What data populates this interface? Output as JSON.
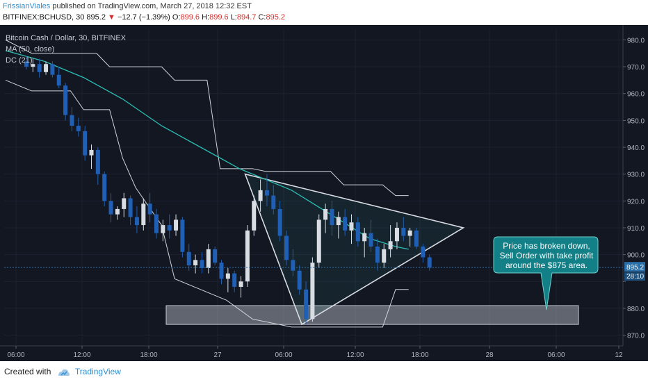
{
  "header": {
    "author": "FrissianViales",
    "published": "published on TradingView.com, March 27, 2018 12:32 EST",
    "symbol": "BITFINEX:BCHUSD, 30",
    "last": "895.2",
    "change": "−12.7 (−1.39%)",
    "open_label": "O:",
    "open": "899.6",
    "high_label": "H:",
    "high": "899.6",
    "low_label": "L:",
    "low": "894.7",
    "close_label": "C:",
    "close": "895.2"
  },
  "legend": {
    "title": "Bitcoin Cash / Dollar, 30, BITFINEX",
    "ma": "MA (50, close)",
    "dc": "DC (21)"
  },
  "annotation": {
    "line1": "Price has broken down,",
    "line2": "Sell Order with take profit",
    "line3": "around the $875 area."
  },
  "footer": {
    "created": "Created with",
    "brand": "TradingView"
  },
  "colors": {
    "background": "#131722",
    "up": "#d8dde3",
    "down": "#1f5fb5",
    "ma": "#2bbfb4",
    "channel": "#d0d4da",
    "callout": "#137f86",
    "price_tag": "#2a6fa8"
  },
  "chart_data": {
    "type": "candlestick",
    "ylim": [
      866,
      984
    ],
    "y_ticks": [
      870,
      880,
      890,
      900,
      910,
      920,
      930,
      940,
      950,
      960,
      970,
      980
    ],
    "y_tick_labels": [
      "870.0",
      "880.0",
      "",
      "900.0",
      "910.0",
      "920.0",
      "930.0",
      "940.0",
      "950.0",
      "960.0",
      "970.0",
      "980.0"
    ],
    "x_ticks": [
      "06:00",
      "12:00",
      "18:00",
      "27",
      "06:00",
      "12:00",
      "18:00",
      "28",
      "06:00",
      "12"
    ],
    "last_price_label": "895.2",
    "countdown_label": "28:10",
    "candles": [
      [
        972,
        974,
        969,
        970
      ],
      [
        970,
        973,
        968,
        971
      ],
      [
        971,
        973,
        966,
        968
      ],
      [
        968,
        972,
        967,
        971
      ],
      [
        971,
        972,
        966,
        967
      ],
      [
        967,
        970,
        962,
        963
      ],
      [
        963,
        964,
        950,
        952
      ],
      [
        952,
        955,
        946,
        948
      ],
      [
        948,
        951,
        944,
        946
      ],
      [
        946,
        948,
        935,
        937
      ],
      [
        937,
        941,
        932,
        939
      ],
      [
        939,
        940,
        926,
        930
      ],
      [
        930,
        931,
        918,
        920
      ],
      [
        920,
        923,
        912,
        915
      ],
      [
        915,
        918,
        913,
        917
      ],
      [
        917,
        923,
        914,
        921
      ],
      [
        921,
        922,
        911,
        914
      ],
      [
        914,
        918,
        908,
        911
      ],
      [
        911,
        921,
        909,
        919
      ],
      [
        919,
        923,
        912,
        915
      ],
      [
        915,
        917,
        906,
        908
      ],
      [
        908,
        913,
        905,
        911
      ],
      [
        911,
        915,
        906,
        909
      ],
      [
        909,
        915,
        907,
        913
      ],
      [
        913,
        914,
        899,
        901
      ],
      [
        901,
        904,
        894,
        896
      ],
      [
        896,
        900,
        893,
        898
      ],
      [
        898,
        901,
        893,
        895
      ],
      [
        895,
        904,
        893,
        902
      ],
      [
        902,
        903,
        896,
        897
      ],
      [
        897,
        898,
        889,
        891
      ],
      [
        891,
        895,
        886,
        893
      ],
      [
        893,
        894,
        886,
        888
      ],
      [
        888,
        892,
        884,
        890
      ],
      [
        890,
        911,
        888,
        909
      ],
      [
        909,
        922,
        907,
        920
      ],
      [
        920,
        928,
        916,
        924
      ],
      [
        924,
        930,
        918,
        922
      ],
      [
        922,
        926,
        915,
        917
      ],
      [
        917,
        920,
        905,
        907
      ],
      [
        907,
        909,
        896,
        898
      ],
      [
        898,
        902,
        892,
        894
      ],
      [
        894,
        896,
        885,
        887
      ],
      [
        887,
        890,
        874,
        876
      ],
      [
        876,
        899,
        875,
        897
      ],
      [
        897,
        915,
        895,
        913
      ],
      [
        913,
        919,
        908,
        917
      ],
      [
        917,
        920,
        907,
        911
      ],
      [
        911,
        916,
        906,
        914
      ],
      [
        914,
        917,
        907,
        909
      ],
      [
        909,
        915,
        904,
        912
      ],
      [
        912,
        914,
        903,
        905
      ],
      [
        905,
        910,
        899,
        908
      ],
      [
        908,
        913,
        901,
        903
      ],
      [
        903,
        906,
        894,
        897
      ],
      [
        897,
        904,
        895,
        902
      ],
      [
        902,
        911,
        899,
        905
      ],
      [
        905,
        912,
        902,
        910
      ],
      [
        910,
        914,
        905,
        907
      ],
      [
        907,
        910,
        903,
        909
      ],
      [
        909,
        910,
        902,
        903
      ],
      [
        903,
        904,
        897,
        899
      ],
      [
        899,
        900,
        894,
        895.2
      ]
    ],
    "ma_50": [
      [
        0,
        976
      ],
      [
        6,
        972
      ],
      [
        12,
        966
      ],
      [
        18,
        958
      ],
      [
        24,
        948
      ],
      [
        30,
        940
      ],
      [
        36,
        932
      ],
      [
        40,
        928
      ],
      [
        44,
        924
      ],
      [
        48,
        918
      ],
      [
        52,
        912
      ],
      [
        56,
        906
      ],
      [
        60,
        903
      ],
      [
        62,
        902
      ]
    ],
    "donchian_upper": [
      [
        0,
        980
      ],
      [
        4,
        975
      ],
      [
        14,
        975
      ],
      [
        16,
        970
      ],
      [
        24,
        970
      ],
      [
        26,
        965
      ],
      [
        31,
        965
      ],
      [
        33,
        932
      ],
      [
        38,
        932
      ],
      [
        40,
        931
      ],
      [
        50,
        931
      ],
      [
        52,
        926
      ],
      [
        58,
        926
      ],
      [
        60,
        922
      ],
      [
        62,
        922
      ]
    ],
    "donchian_lower": [
      [
        0,
        965
      ],
      [
        4,
        961
      ],
      [
        10,
        961
      ],
      [
        12,
        954
      ],
      [
        16,
        954
      ],
      [
        18,
        936
      ],
      [
        20,
        925
      ],
      [
        24,
        911
      ],
      [
        26,
        891
      ],
      [
        30,
        887
      ],
      [
        34,
        883
      ],
      [
        38,
        876
      ],
      [
        44,
        873
      ],
      [
        50,
        873
      ],
      [
        58,
        873
      ],
      [
        60,
        887
      ],
      [
        62,
        887
      ]
    ],
    "triangle": {
      "top_left": [
        36,
        930
      ],
      "bottom_left": [
        46,
        874
      ],
      "apex": [
        64,
        910
      ]
    },
    "target_zone": {
      "from": 874,
      "to": 881
    }
  }
}
